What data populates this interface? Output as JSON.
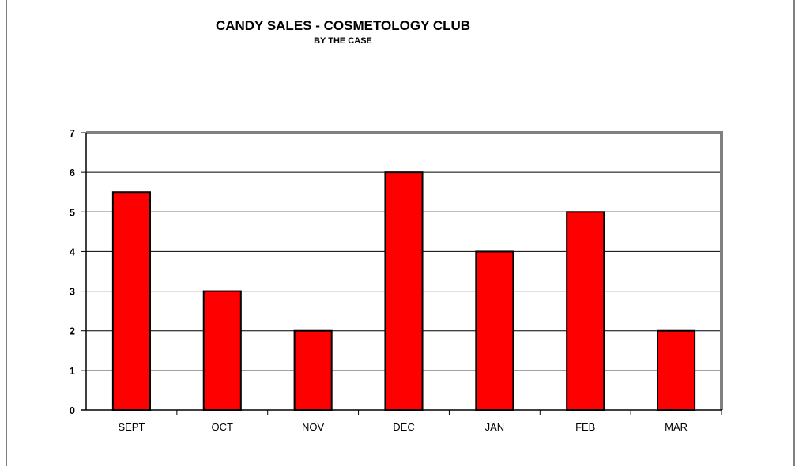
{
  "chart_data": {
    "type": "bar",
    "title": "CANDY SALES - COSMETOLOGY CLUB",
    "subtitle": "BY THE CASE",
    "categories": [
      "SEPT",
      "OCT",
      "NOV",
      "DEC",
      "JAN",
      "FEB",
      "MAR"
    ],
    "values": [
      5.5,
      3,
      2,
      6,
      4,
      5,
      2
    ],
    "ylim": [
      0,
      7
    ],
    "yticks": [
      "0",
      "1",
      "2",
      "3",
      "4",
      "5",
      "6",
      "7"
    ],
    "grid": true,
    "legend": "none",
    "bar_color": "#ff0000",
    "bar_outline_color": "#000000",
    "plot_border_color": "#808080"
  }
}
